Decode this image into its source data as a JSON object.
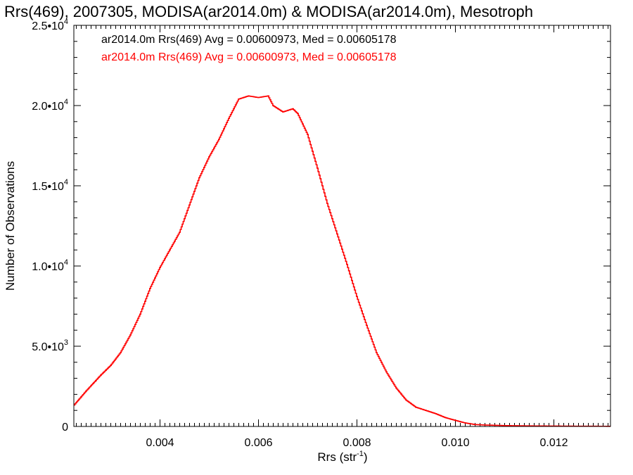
{
  "chart_data": {
    "type": "histogram",
    "title": "Rrs(469), 2007305, MODISA(ar2014.0m) & MODISA(ar2014.0m), Mesotroph",
    "xlabel_main": "Rrs (str",
    "xlabel_sup": "-1",
    "xlabel_close": ")",
    "ylabel": "Number of Observations",
    "xlim": [
      0.00225,
      0.01315
    ],
    "ylim": [
      0,
      25000
    ],
    "x_ticks": [
      {
        "value": 0.004,
        "label": "0.004"
      },
      {
        "value": 0.006,
        "label": "0.006"
      },
      {
        "value": 0.008,
        "label": "0.008"
      },
      {
        "value": 0.01,
        "label": "0.010"
      },
      {
        "value": 0.012,
        "label": "0.012"
      }
    ],
    "y_ticks": [
      {
        "value": 0,
        "mant": "0",
        "exp": ""
      },
      {
        "value": 5000,
        "mant": "5.0•10",
        "exp": "3"
      },
      {
        "value": 10000,
        "mant": "1.0•10",
        "exp": "4"
      },
      {
        "value": 15000,
        "mant": "1.5•10",
        "exp": "4"
      },
      {
        "value": 20000,
        "mant": "2.0•10",
        "exp": "4"
      },
      {
        "value": 25000,
        "mant": "2.5•10",
        "exp": "4"
      }
    ],
    "legend_position": "top-left",
    "series": [
      {
        "name": "ar2014.0m Rrs(469) Avg = 0.00600973, Med = 0.00605178",
        "color": "#000000"
      },
      {
        "name": "ar2014.0m Rrs(469) Avg = 0.00600973, Med = 0.00605178",
        "color": "#ff0000"
      }
    ],
    "profile": {
      "x": [
        0.00225,
        0.0025,
        0.0028,
        0.003,
        0.0032,
        0.0034,
        0.0036,
        0.0038,
        0.004,
        0.0042,
        0.0044,
        0.0046,
        0.0048,
        0.005,
        0.0052,
        0.0054,
        0.0056,
        0.0058,
        0.006,
        0.0062,
        0.0063,
        0.0065,
        0.0067,
        0.0068,
        0.007,
        0.0072,
        0.0074,
        0.0076,
        0.0078,
        0.008,
        0.0082,
        0.0084,
        0.0086,
        0.0088,
        0.009,
        0.0092,
        0.0094,
        0.0096,
        0.0098,
        0.01,
        0.0102,
        0.0104,
        0.0106,
        0.011,
        0.0115,
        0.012,
        0.0125,
        0.0131
      ],
      "y": [
        1300,
        2200,
        3200,
        3800,
        4600,
        5700,
        7000,
        8600,
        9900,
        11000,
        12100,
        13800,
        15500,
        16800,
        17900,
        19200,
        20400,
        20600,
        20500,
        20600,
        20000,
        19600,
        19800,
        19500,
        18200,
        16100,
        13900,
        12000,
        10100,
        8100,
        6300,
        4600,
        3400,
        2400,
        1650,
        1200,
        1000,
        800,
        550,
        380,
        220,
        120,
        90,
        55,
        35,
        25,
        15,
        10
      ]
    }
  }
}
